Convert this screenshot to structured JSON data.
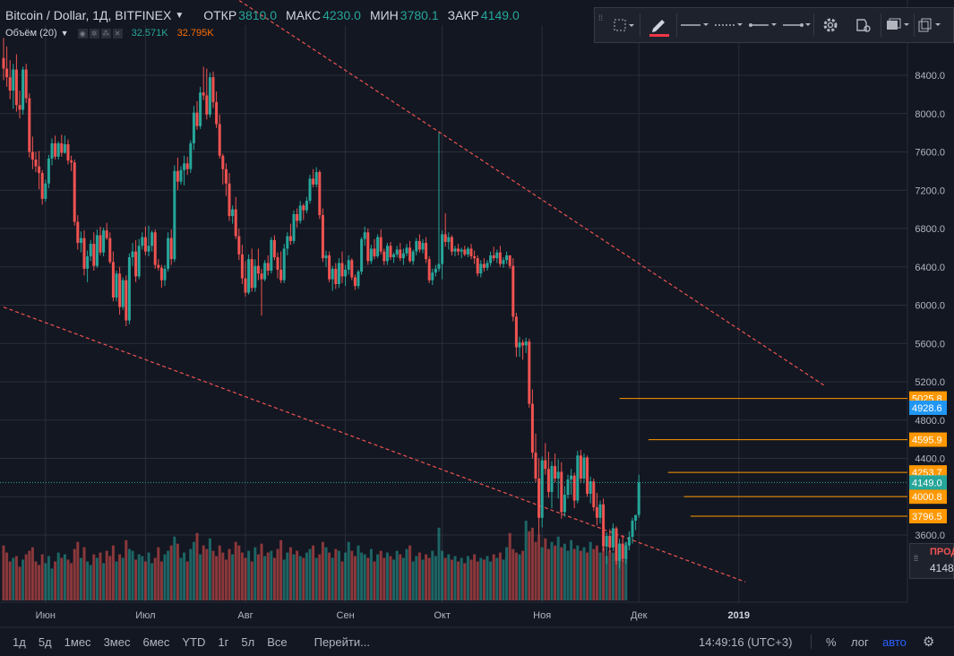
{
  "header": {
    "symbol": "Bitcoin / Dollar, 1Д, BITFINEX",
    "open_label": "ОТКР",
    "open": "3810.0",
    "high_label": "МАКС",
    "high": "4230.0",
    "low_label": "МИН",
    "low": "3780.1",
    "close_label": "ЗАКР",
    "close": "4149.0"
  },
  "volume_indicator": {
    "name": "Объём (20)",
    "value1": "32.571K",
    "value2": "32.795K"
  },
  "toolbar": {
    "icons": [
      "select-area-icon",
      "pencil-icon",
      "line-style-solid-icon",
      "line-style-dashed-icon",
      "line-end-icon",
      "line-arrow-icon",
      "settings-gear-icon",
      "alert-clone-icon",
      "layers-icon",
      "copy-icon"
    ],
    "accent_color": "#f23645"
  },
  "bottom_bar": {
    "timeframes": [
      "1д",
      "5д",
      "1мес",
      "3мес",
      "6мес",
      "YTD",
      "1г",
      "5л",
      "Все"
    ],
    "goto": "Перейти...",
    "clock": "14:49:16 (UTC+3)",
    "percent": "%",
    "log": "лог",
    "auto": "авто"
  },
  "side_panel": {
    "label": "ПРОД",
    "value": "4148"
  },
  "chart_data": {
    "type": "candlestick",
    "colors": {
      "up": "#26a69a",
      "down": "#ef5350",
      "background": "#131722",
      "grid": "#2a2e39",
      "trendline": "#ef5350",
      "level_line": "#ff9800",
      "last_price": "#26a69a",
      "highlight_label": "#2196f3"
    },
    "price_axis": {
      "ticks": [
        3600,
        4000,
        4400,
        4800,
        5200,
        5600,
        6000,
        6400,
        6800,
        7200,
        7600,
        8000,
        8400
      ],
      "tick_labels": [
        "3600.0",
        "4000.0",
        "4400.0",
        "4800.0",
        "5200.0",
        "5600.0",
        "6000.0",
        "6400.0",
        "6800.0",
        "7200.0",
        "7600.0",
        "8000.0",
        "8400.0"
      ],
      "range": [
        3050,
        8750
      ]
    },
    "time_axis": {
      "labels": [
        "Июн",
        "Июл",
        "Авг",
        "Сен",
        "Окт",
        "Ноя",
        "Дек",
        "2019"
      ],
      "label_day_index": [
        13,
        44,
        75,
        106,
        136,
        167,
        197,
        228
      ],
      "range_days": [
        0,
        247
      ]
    },
    "price_levels": [
      {
        "value": 5025.8,
        "label": "5025.8",
        "from_day": 191
      },
      {
        "value": 4928.6,
        "label": "4928.6",
        "highlight": true
      },
      {
        "value": 4595.9,
        "label": "4595.9",
        "from_day": 200
      },
      {
        "value": 4253.7,
        "label": "4253.7",
        "from_day": 206
      },
      {
        "value": 4000.8,
        "label": "4000.8",
        "from_day": 211
      },
      {
        "value": 3796.5,
        "label": "3796.5",
        "from_day": 213
      }
    ],
    "last_price": {
      "value": 4149.0,
      "label": "4149.0"
    },
    "trendlines": [
      {
        "from": [
          0,
          10800
        ],
        "to": [
          255,
          5150
        ]
      },
      {
        "from": [
          0,
          5980
        ],
        "to": [
          230,
          3110
        ]
      }
    ],
    "candles": [
      [
        8580,
        8790,
        8350,
        8470
      ],
      [
        8470,
        8700,
        8280,
        8380
      ],
      [
        8380,
        8560,
        8150,
        8240
      ],
      [
        8240,
        8520,
        8050,
        8460
      ],
      [
        8460,
        8620,
        8020,
        8090
      ],
      [
        8090,
        8240,
        7950,
        8040
      ],
      [
        8040,
        8490,
        7990,
        8460
      ],
      [
        8460,
        8520,
        8110,
        8160
      ],
      [
        8160,
        8210,
        7540,
        7600
      ],
      [
        7600,
        7760,
        7420,
        7520
      ],
      [
        7520,
        7600,
        7390,
        7450
      ],
      [
        7450,
        7610,
        7210,
        7380
      ],
      [
        7380,
        7410,
        7050,
        7110
      ],
      [
        7110,
        7310,
        7080,
        7270
      ],
      [
        7270,
        7570,
        7220,
        7530
      ],
      [
        7530,
        7740,
        7460,
        7690
      ],
      [
        7690,
        7770,
        7520,
        7550
      ],
      [
        7550,
        7710,
        7520,
        7690
      ],
      [
        7690,
        7780,
        7550,
        7590
      ],
      [
        7590,
        7770,
        7580,
        7680
      ],
      [
        7680,
        7730,
        7470,
        7510
      ],
      [
        7510,
        7560,
        7400,
        7490
      ],
      [
        7490,
        7520,
        6830,
        6870
      ],
      [
        6870,
        6940,
        6580,
        6650
      ],
      [
        6650,
        6770,
        6550,
        6700
      ],
      [
        6700,
        6780,
        6310,
        6380
      ],
      [
        6380,
        6570,
        6240,
        6510
      ],
      [
        6510,
        6680,
        6460,
        6640
      ],
      [
        6640,
        6760,
        6360,
        6410
      ],
      [
        6410,
        6790,
        6390,
        6730
      ],
      [
        6730,
        6820,
        6520,
        6550
      ],
      [
        6550,
        6810,
        6510,
        6780
      ],
      [
        6780,
        6860,
        6680,
        6700
      ],
      [
        6700,
        6760,
        6430,
        6450
      ],
      [
        6450,
        6560,
        6040,
        6080
      ],
      [
        6080,
        6360,
        6040,
        6330
      ],
      [
        6330,
        6400,
        5900,
        5980
      ],
      [
        5980,
        6290,
        5950,
        6260
      ],
      [
        6260,
        6310,
        5780,
        5840
      ],
      [
        5840,
        6540,
        5800,
        6500
      ],
      [
        6500,
        6650,
        6410,
        6560
      ],
      [
        6560,
        6680,
        6240,
        6300
      ],
      [
        6300,
        6690,
        6270,
        6620
      ],
      [
        6620,
        6760,
        6580,
        6710
      ],
      [
        6710,
        6820,
        6520,
        6560
      ],
      [
        6560,
        6830,
        6510,
        6620
      ],
      [
        6620,
        6780,
        6560,
        6760
      ],
      [
        6760,
        6790,
        6380,
        6420
      ],
      [
        6420,
        6480,
        6360,
        6390
      ],
      [
        6390,
        6420,
        6180,
        6260
      ],
      [
        6260,
        6420,
        6200,
        6380
      ],
      [
        6380,
        6760,
        6350,
        6700
      ],
      [
        6700,
        6790,
        6420,
        6480
      ],
      [
        6480,
        7460,
        6450,
        7400
      ],
      [
        7400,
        7540,
        7200,
        7290
      ],
      [
        7290,
        7450,
        7260,
        7410
      ],
      [
        7410,
        7560,
        7250,
        7480
      ],
      [
        7480,
        7550,
        7360,
        7420
      ],
      [
        7420,
        7720,
        7380,
        7690
      ],
      [
        7690,
        8080,
        7620,
        8010
      ],
      [
        8010,
        8130,
        7830,
        7870
      ],
      [
        7870,
        8280,
        7840,
        8220
      ],
      [
        8220,
        8490,
        8140,
        8190
      ],
      [
        8190,
        8470,
        7940,
        7990
      ],
      [
        7990,
        8430,
        7960,
        8380
      ],
      [
        8380,
        8440,
        8060,
        8120
      ],
      [
        8120,
        8230,
        7850,
        7890
      ],
      [
        7890,
        7990,
        7530,
        7560
      ],
      [
        7560,
        7580,
        7260,
        7420
      ],
      [
        7420,
        7480,
        7140,
        7270
      ],
      [
        7270,
        7380,
        6880,
        6930
      ],
      [
        6930,
        7040,
        6850,
        7000
      ],
      [
        7000,
        7130,
        6690,
        6720
      ],
      [
        6720,
        6800,
        6470,
        6530
      ],
      [
        6530,
        6630,
        6220,
        6280
      ],
      [
        6280,
        6460,
        6090,
        6130
      ],
      [
        6130,
        6530,
        6110,
        6480
      ],
      [
        6480,
        6590,
        6140,
        6180
      ],
      [
        6180,
        6480,
        6140,
        6410
      ],
      [
        6410,
        6590,
        6260,
        6330
      ],
      [
        6330,
        6380,
        5890,
        6270
      ],
      [
        6270,
        6470,
        6250,
        6440
      ],
      [
        6440,
        6520,
        6310,
        6360
      ],
      [
        6360,
        6710,
        6330,
        6680
      ],
      [
        6680,
        6730,
        6470,
        6500
      ],
      [
        6500,
        6550,
        6280,
        6370
      ],
      [
        6370,
        6560,
        6230,
        6260
      ],
      [
        6260,
        6640,
        6230,
        6590
      ],
      [
        6590,
        6760,
        6520,
        6720
      ],
      [
        6720,
        6850,
        6630,
        6670
      ],
      [
        6670,
        6990,
        6640,
        6950
      ],
      [
        6950,
        7010,
        6810,
        6880
      ],
      [
        6880,
        7090,
        6850,
        7040
      ],
      [
        7040,
        7060,
        6890,
        6990
      ],
      [
        6990,
        7130,
        6960,
        7090
      ],
      [
        7090,
        7360,
        7060,
        7320
      ],
      [
        7320,
        7420,
        7230,
        7260
      ],
      [
        7260,
        7440,
        7230,
        7390
      ],
      [
        7390,
        7410,
        6900,
        6940
      ],
      [
        6940,
        7010,
        6450,
        6490
      ],
      [
        6490,
        6570,
        6400,
        6520
      ],
      [
        6520,
        6560,
        6240,
        6270
      ],
      [
        6270,
        6410,
        6150,
        6380
      ],
      [
        6380,
        6440,
        6170,
        6220
      ],
      [
        6220,
        6490,
        6180,
        6440
      ],
      [
        6440,
        6560,
        6230,
        6300
      ],
      [
        6300,
        6420,
        6200,
        6370
      ],
      [
        6370,
        6520,
        6320,
        6470
      ],
      [
        6470,
        6490,
        6260,
        6290
      ],
      [
        6290,
        6320,
        6160,
        6200
      ],
      [
        6200,
        6370,
        6170,
        6350
      ],
      [
        6350,
        6710,
        6320,
        6690
      ],
      [
        6690,
        6820,
        6620,
        6760
      ],
      [
        6760,
        6800,
        6420,
        6460
      ],
      [
        6460,
        6630,
        6430,
        6590
      ],
      [
        6590,
        6690,
        6480,
        6510
      ],
      [
        6510,
        6740,
        6490,
        6710
      ],
      [
        6710,
        6790,
        6530,
        6560
      ],
      [
        6560,
        6590,
        6420,
        6460
      ],
      [
        6460,
        6650,
        6420,
        6620
      ],
      [
        6620,
        6660,
        6470,
        6500
      ],
      [
        6500,
        6550,
        6440,
        6530
      ],
      [
        6530,
        6620,
        6500,
        6580
      ],
      [
        6580,
        6650,
        6460,
        6490
      ],
      [
        6490,
        6590,
        6420,
        6540
      ],
      [
        6540,
        6640,
        6510,
        6600
      ],
      [
        6600,
        6670,
        6440,
        6460
      ],
      [
        6460,
        6580,
        6420,
        6560
      ],
      [
        6560,
        6700,
        6520,
        6670
      ],
      [
        6670,
        6740,
        6550,
        6580
      ],
      [
        6580,
        6690,
        6540,
        6650
      ],
      [
        6650,
        6710,
        6440,
        6480
      ],
      [
        6480,
        6510,
        6230,
        6260
      ],
      [
        6260,
        6380,
        6210,
        6340
      ],
      [
        6340,
        6420,
        6300,
        6380
      ],
      [
        6380,
        7800,
        6350,
        6430
      ],
      [
        6430,
        6780,
        6270,
        6740
      ],
      [
        6740,
        6960,
        6610,
        6660
      ],
      [
        6660,
        6760,
        6580,
        6710
      ],
      [
        6710,
        6730,
        6520,
        6560
      ],
      [
        6560,
        6620,
        6510,
        6590
      ],
      [
        6590,
        6640,
        6520,
        6560
      ],
      [
        6560,
        6600,
        6490,
        6580
      ],
      [
        6580,
        6620,
        6510,
        6530
      ],
      [
        6530,
        6610,
        6500,
        6590
      ],
      [
        6590,
        6640,
        6480,
        6510
      ],
      [
        6510,
        6570,
        6430,
        6490
      ],
      [
        6490,
        6520,
        6300,
        6330
      ],
      [
        6330,
        6470,
        6290,
        6430
      ],
      [
        6430,
        6490,
        6350,
        6390
      ],
      [
        6390,
        6470,
        6360,
        6440
      ],
      [
        6440,
        6560,
        6410,
        6520
      ],
      [
        6520,
        6610,
        6460,
        6490
      ],
      [
        6490,
        6580,
        6440,
        6550
      ],
      [
        6550,
        6620,
        6400,
        6430
      ],
      [
        6430,
        6500,
        6390,
        6470
      ],
      [
        6470,
        6560,
        6430,
        6520
      ],
      [
        6520,
        6520,
        6380,
        6410
      ],
      [
        6410,
        6490,
        5830,
        5880
      ],
      [
        5880,
        5920,
        5460,
        5560
      ],
      [
        5560,
        5670,
        5460,
        5610
      ],
      [
        5610,
        5640,
        5430,
        5580
      ],
      [
        5580,
        5660,
        5500,
        5620
      ],
      [
        5620,
        5650,
        4930,
        4970
      ],
      [
        4970,
        5120,
        4400,
        4460
      ],
      [
        4460,
        4660,
        4150,
        4190
      ],
      [
        4190,
        4400,
        3600,
        3780
      ],
      [
        3780,
        4420,
        3680,
        4380
      ],
      [
        4380,
        4560,
        4230,
        4290
      ],
      [
        4290,
        4470,
        3990,
        4050
      ],
      [
        4050,
        4370,
        3880,
        4320
      ],
      [
        4320,
        4450,
        4150,
        4190
      ],
      [
        4190,
        4390,
        3980,
        4260
      ],
      [
        4260,
        4360,
        3770,
        3840
      ],
      [
        3840,
        4110,
        3790,
        4020
      ],
      [
        4020,
        4230,
        3980,
        4180
      ],
      [
        4180,
        4290,
        4020,
        4220
      ],
      [
        4220,
        4250,
        3880,
        3960
      ],
      [
        3960,
        4480,
        3930,
        4430
      ],
      [
        4430,
        4490,
        4140,
        4190
      ],
      [
        4190,
        4450,
        4140,
        4410
      ],
      [
        4410,
        4430,
        4000,
        4030
      ],
      [
        4030,
        4210,
        3930,
        4160
      ],
      [
        4160,
        4190,
        3850,
        3890
      ],
      [
        3890,
        4040,
        3700,
        3780
      ],
      [
        3780,
        3960,
        3720,
        3920
      ],
      [
        3920,
        3980,
        3430,
        3480
      ],
      [
        3480,
        3630,
        3300,
        3590
      ],
      [
        3590,
        3660,
        3420,
        3470
      ],
      [
        3470,
        3720,
        3430,
        3670
      ],
      [
        3670,
        3690,
        3290,
        3330
      ],
      [
        3330,
        3560,
        3250,
        3510
      ],
      [
        3510,
        3600,
        3320,
        3350
      ],
      [
        3350,
        3520,
        3300,
        3490
      ],
      [
        3490,
        3640,
        3440,
        3580
      ],
      [
        3580,
        3780,
        3510,
        3750
      ],
      [
        3750,
        3790,
        3650,
        3810
      ],
      [
        3810,
        4230,
        3780,
        4149
      ]
    ],
    "volumes": [
      31,
      27,
      22,
      24,
      25,
      19,
      23,
      26,
      28,
      30,
      22,
      20,
      26,
      21,
      25,
      18,
      22,
      27,
      24,
      26,
      23,
      21,
      29,
      33,
      24,
      30,
      22,
      20,
      26,
      24,
      27,
      21,
      28,
      25,
      31,
      22,
      26,
      24,
      34,
      29,
      28,
      23,
      26,
      25,
      22,
      27,
      21,
      24,
      30,
      22,
      26,
      28,
      31,
      36,
      32,
      24,
      27,
      22,
      29,
      33,
      38,
      26,
      31,
      29,
      35,
      28,
      25,
      31,
      27,
      23,
      29,
      26,
      33,
      31,
      27,
      24,
      28,
      22,
      30,
      26,
      32,
      25,
      27,
      28,
      24,
      29,
      34,
      23,
      27,
      30,
      26,
      28,
      25,
      24,
      27,
      29,
      31,
      24,
      26,
      33,
      30,
      27,
      24,
      29,
      28,
      22,
      27,
      33,
      28,
      25,
      31,
      27,
      26,
      24,
      29,
      22,
      26,
      28,
      24,
      27,
      25,
      23,
      28,
      26,
      24,
      29,
      31,
      22,
      25,
      27,
      23,
      26,
      24,
      28,
      25,
      41,
      28,
      24,
      26,
      23,
      25,
      22,
      24,
      21,
      25,
      23,
      26,
      22,
      24,
      23,
      25,
      22,
      26,
      24,
      27,
      23,
      30,
      38,
      29,
      27,
      26,
      28,
      45,
      39,
      41,
      33,
      37,
      30,
      35,
      29,
      33,
      31,
      36,
      30,
      32,
      28,
      34,
      29,
      31,
      28,
      30,
      27,
      33,
      29,
      31,
      27,
      30,
      25,
      28,
      27,
      24,
      26,
      23,
      33
    ]
  }
}
